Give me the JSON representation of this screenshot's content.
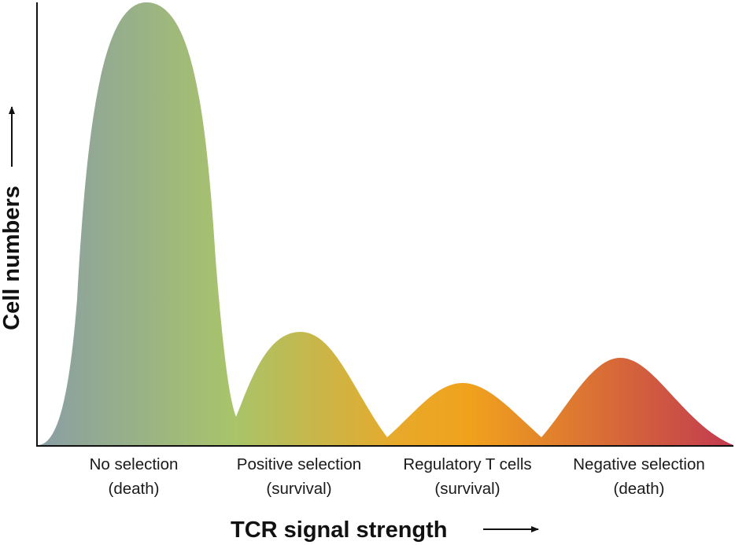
{
  "y_axis": {
    "label": "Cell numbers"
  },
  "x_axis": {
    "label": "TCR signal strength"
  },
  "populations": [
    {
      "line1": "No selection",
      "line2": "(death)"
    },
    {
      "line1": "Positive selection",
      "line2": "(survival)"
    },
    {
      "line1": "Regulatory T cells",
      "line2": "(survival)"
    },
    {
      "line1": "Negative selection",
      "line2": "(death)"
    }
  ],
  "gradient_colors": [
    "#8a9ea4",
    "#a8c46a",
    "#e8a92a",
    "#f0a21c",
    "#c23a50"
  ]
}
